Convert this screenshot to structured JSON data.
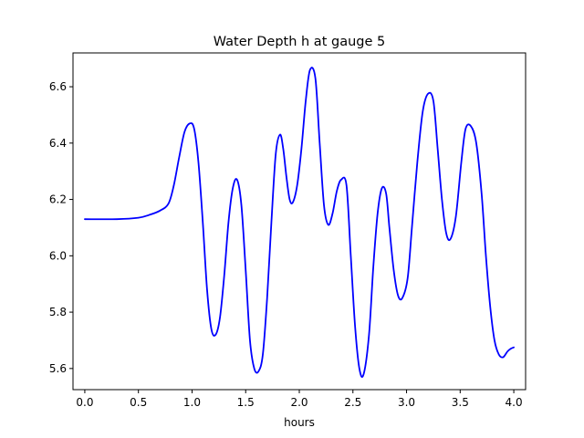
{
  "chart_data": {
    "type": "line",
    "title": "Water Depth h at gauge 5",
    "xlabel": "hours",
    "ylabel": "",
    "xlim": [
      -0.11,
      4.11
    ],
    "ylim": [
      5.525,
      6.72
    ],
    "xticks": [
      0.0,
      0.5,
      1.0,
      1.5,
      2.0,
      2.5,
      3.0,
      3.5,
      4.0
    ],
    "xtick_labels": [
      "0.0",
      "0.5",
      "1.0",
      "1.5",
      "2.0",
      "2.5",
      "3.0",
      "3.5",
      "4.0"
    ],
    "yticks": [
      5.6,
      5.8,
      6.0,
      6.2,
      6.4,
      6.6
    ],
    "ytick_labels": [
      "5.6",
      "5.8",
      "6.0",
      "6.2",
      "6.4",
      "6.6"
    ],
    "grid": false,
    "series": [
      {
        "color": "#0000ff",
        "x": [
          0.0,
          0.3,
          0.5,
          0.6,
          0.7,
          0.78,
          0.83,
          0.88,
          0.93,
          0.98,
          1.02,
          1.06,
          1.1,
          1.14,
          1.18,
          1.22,
          1.26,
          1.3,
          1.34,
          1.38,
          1.42,
          1.46,
          1.5,
          1.54,
          1.58,
          1.62,
          1.66,
          1.7,
          1.74,
          1.78,
          1.82,
          1.85,
          1.88,
          1.91,
          1.94,
          1.98,
          2.02,
          2.06,
          2.1,
          2.15,
          2.19,
          2.23,
          2.27,
          2.31,
          2.35,
          2.39,
          2.44,
          2.48,
          2.52,
          2.56,
          2.6,
          2.65,
          2.69,
          2.73,
          2.77,
          2.81,
          2.84,
          2.88,
          2.92,
          2.96,
          3.01,
          3.05,
          3.1,
          3.15,
          3.2,
          3.25,
          3.29,
          3.33,
          3.37,
          3.41,
          3.46,
          3.51,
          3.55,
          3.6,
          3.65,
          3.7,
          3.74,
          3.78,
          3.82,
          3.86,
          3.9,
          3.94,
          3.97,
          4.0
        ],
        "y": [
          6.13,
          6.13,
          6.135,
          6.145,
          6.16,
          6.185,
          6.25,
          6.35,
          6.44,
          6.47,
          6.45,
          6.33,
          6.12,
          5.88,
          5.74,
          5.72,
          5.78,
          5.93,
          6.12,
          6.24,
          6.27,
          6.18,
          5.95,
          5.7,
          5.6,
          5.59,
          5.65,
          5.85,
          6.12,
          6.36,
          6.43,
          6.38,
          6.28,
          6.2,
          6.19,
          6.25,
          6.38,
          6.55,
          6.66,
          6.63,
          6.4,
          6.18,
          6.11,
          6.15,
          6.23,
          6.27,
          6.25,
          6.0,
          5.75,
          5.6,
          5.58,
          5.72,
          5.96,
          6.15,
          6.24,
          6.22,
          6.1,
          5.95,
          5.86,
          5.85,
          5.92,
          6.1,
          6.33,
          6.51,
          6.575,
          6.55,
          6.38,
          6.2,
          6.08,
          6.06,
          6.14,
          6.33,
          6.45,
          6.46,
          6.4,
          6.22,
          6.0,
          5.82,
          5.7,
          5.65,
          5.64,
          5.66,
          5.67,
          5.675
        ]
      }
    ]
  }
}
